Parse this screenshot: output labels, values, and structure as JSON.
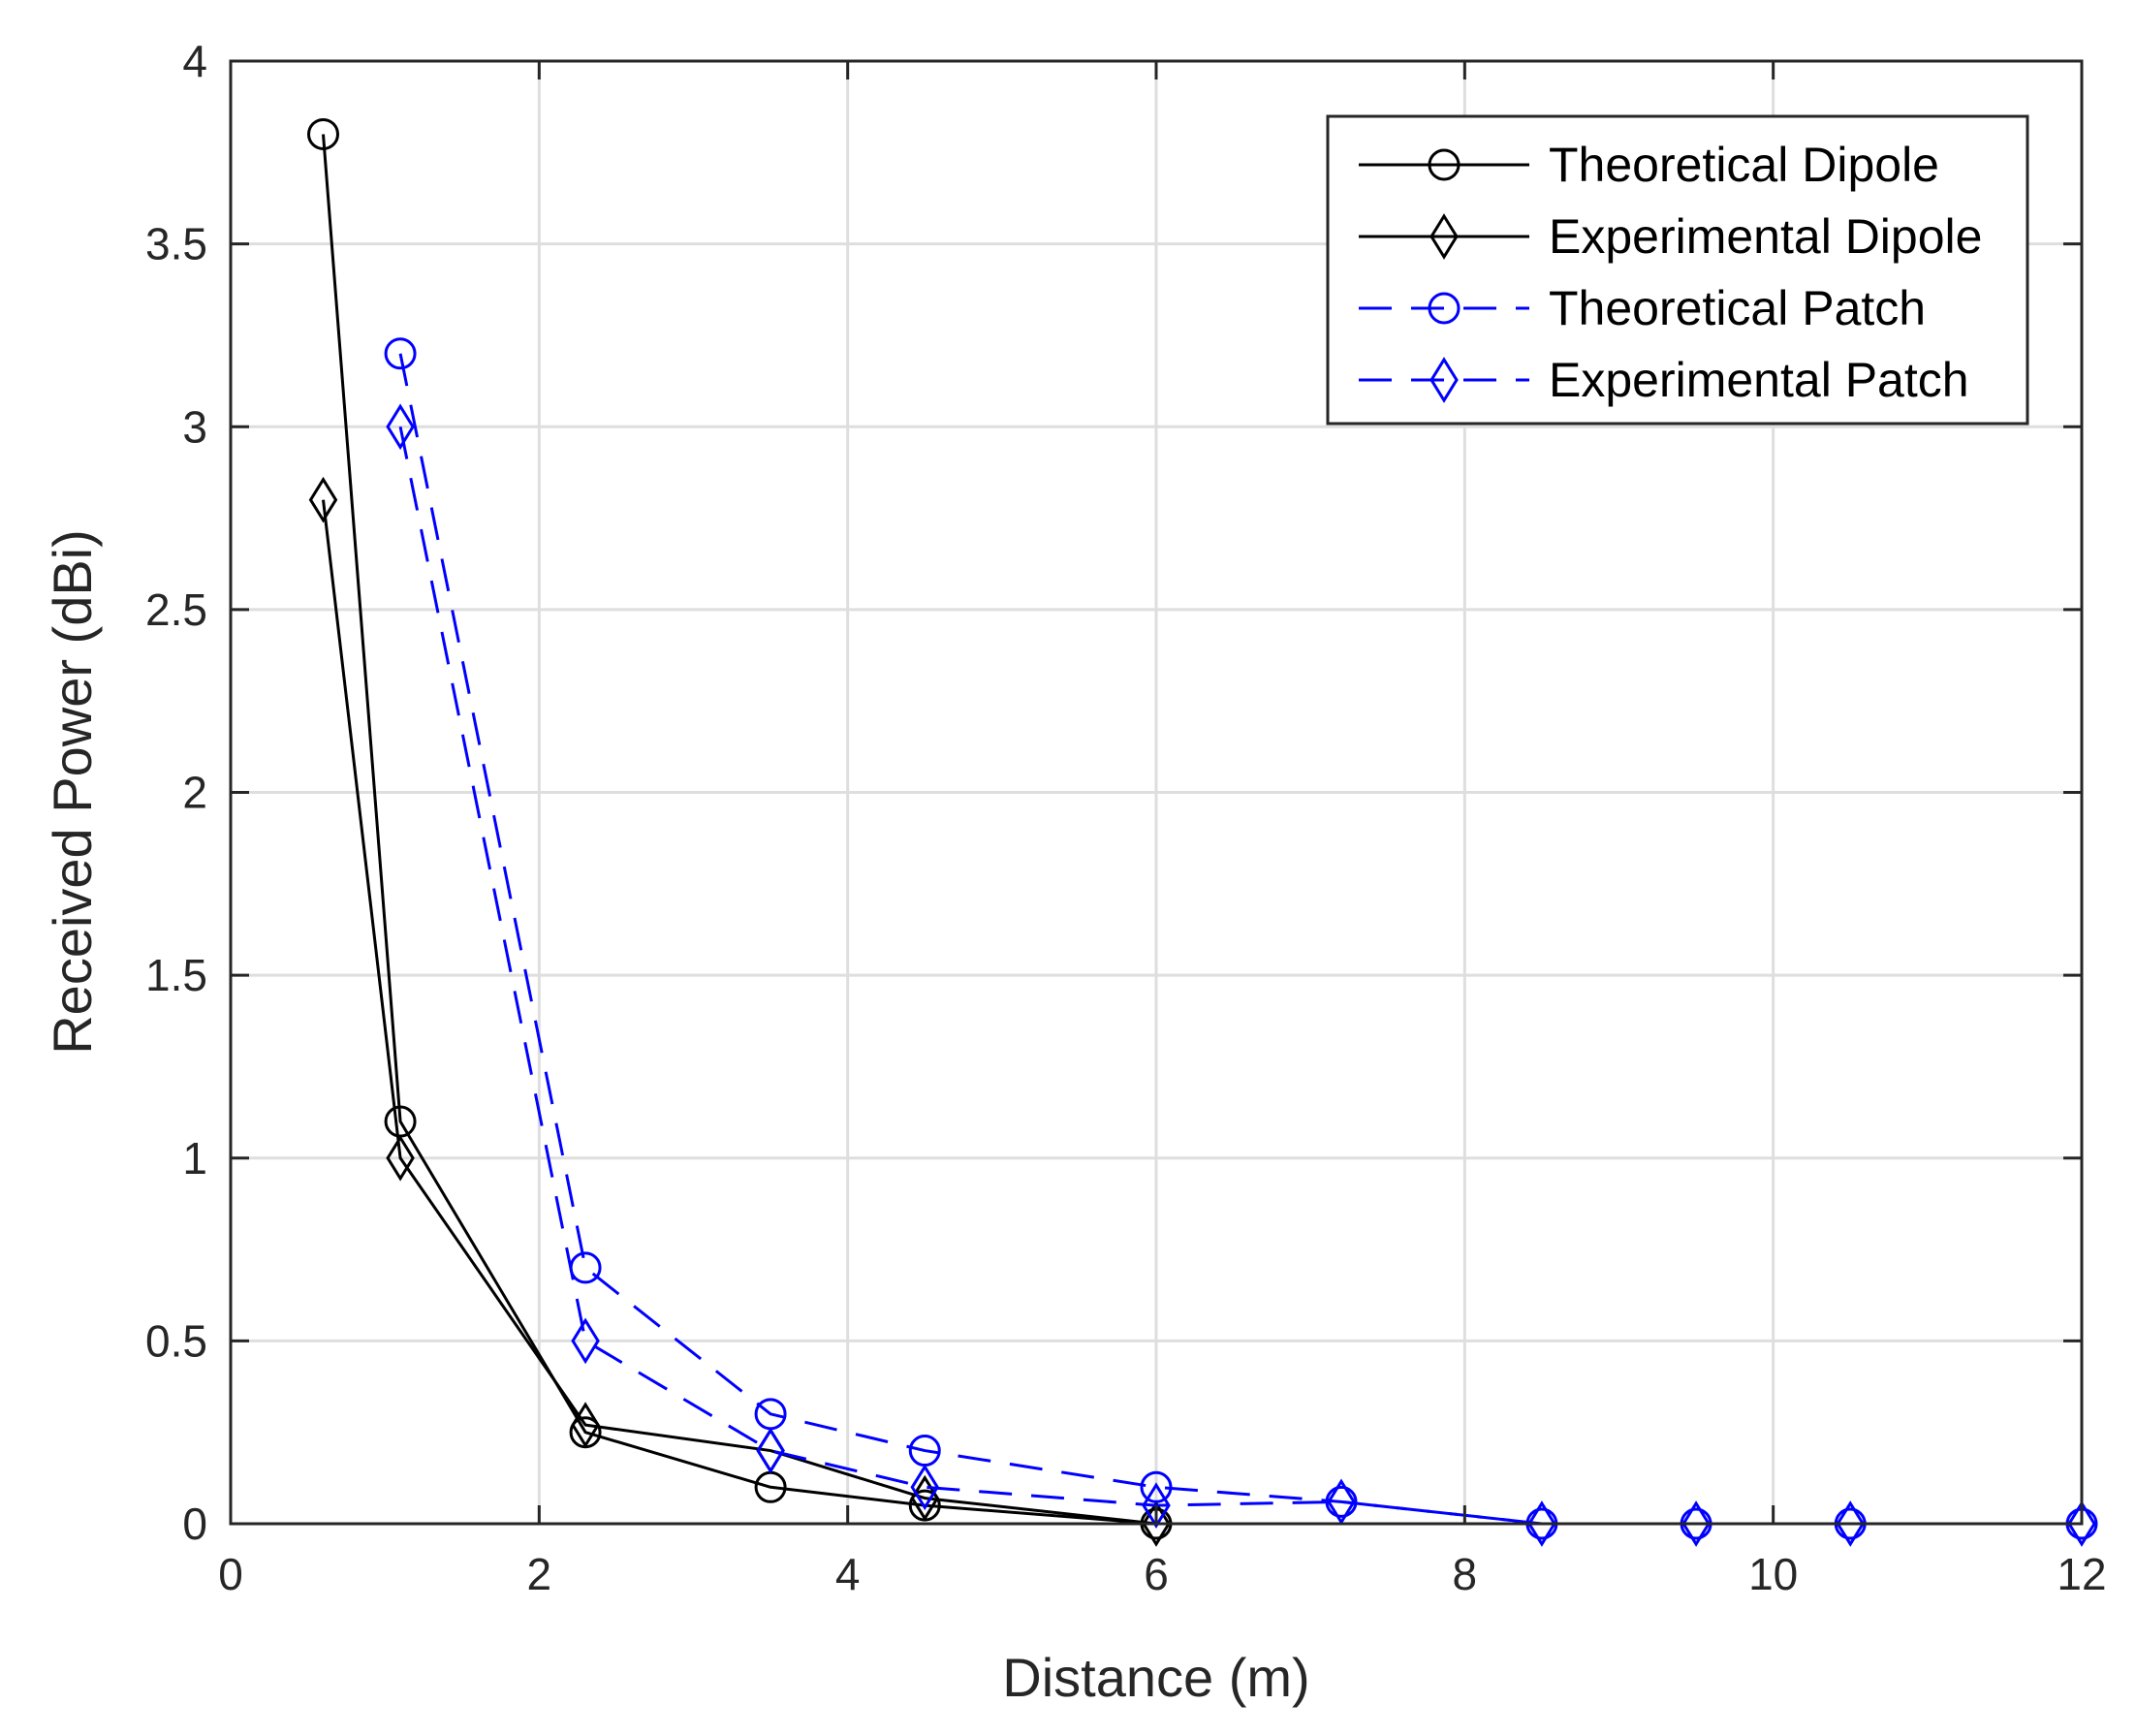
{
  "chart_data": {
    "type": "line",
    "title": "",
    "xlabel": "Distance (m)",
    "ylabel": "Received Power (dBi)",
    "xlim": [
      0,
      12
    ],
    "ylim": [
      0,
      4
    ],
    "xticks": [
      0,
      2,
      4,
      6,
      8,
      10,
      12
    ],
    "yticks": [
      0,
      0.5,
      1,
      1.5,
      2,
      2.5,
      3,
      3.5,
      4
    ],
    "xtick_labels": [
      "0",
      "2",
      "4",
      "6",
      "8",
      "10",
      "12"
    ],
    "ytick_labels": [
      "0",
      "0.5",
      "1",
      "1.5",
      "2",
      "2.5",
      "3",
      "3.5",
      "4"
    ],
    "grid": true,
    "legend_position": "top-right",
    "series": [
      {
        "name": "Theoretical Dipole",
        "color": "#000000",
        "line_style": "solid",
        "marker": "circle",
        "x": [
          0.6,
          1.1,
          2.3,
          3.5,
          4.5,
          6
        ],
        "y": [
          3.8,
          1.1,
          0.25,
          0.1,
          0.05,
          0
        ]
      },
      {
        "name": "Experimental Dipole",
        "color": "#000000",
        "line_style": "solid",
        "marker": "diamond",
        "x": [
          0.6,
          1.1,
          2.3,
          3.5,
          4.5,
          6
        ],
        "y": [
          2.8,
          1.0,
          0.27,
          0.2,
          0.07,
          0
        ]
      },
      {
        "name": "Theoretical Patch",
        "color": "#0000ff",
        "line_style": "dashed",
        "marker": "circle",
        "x": [
          1.1,
          2.3,
          3.5,
          4.5,
          6,
          7.2,
          8.5,
          9.5,
          10.5,
          12
        ],
        "y": [
          3.2,
          0.7,
          0.3,
          0.2,
          0.1,
          0.06,
          0,
          0,
          0,
          0
        ]
      },
      {
        "name": "Experimental Patch",
        "color": "#0000ff",
        "line_style": "dashed",
        "marker": "diamond",
        "x": [
          1.1,
          2.3,
          3.5,
          4.5,
          6,
          7.2,
          8.5,
          9.5,
          10.5,
          12
        ],
        "y": [
          3.0,
          0.5,
          0.2,
          0.1,
          0.05,
          0.06,
          0,
          0,
          0,
          0
        ]
      }
    ]
  }
}
